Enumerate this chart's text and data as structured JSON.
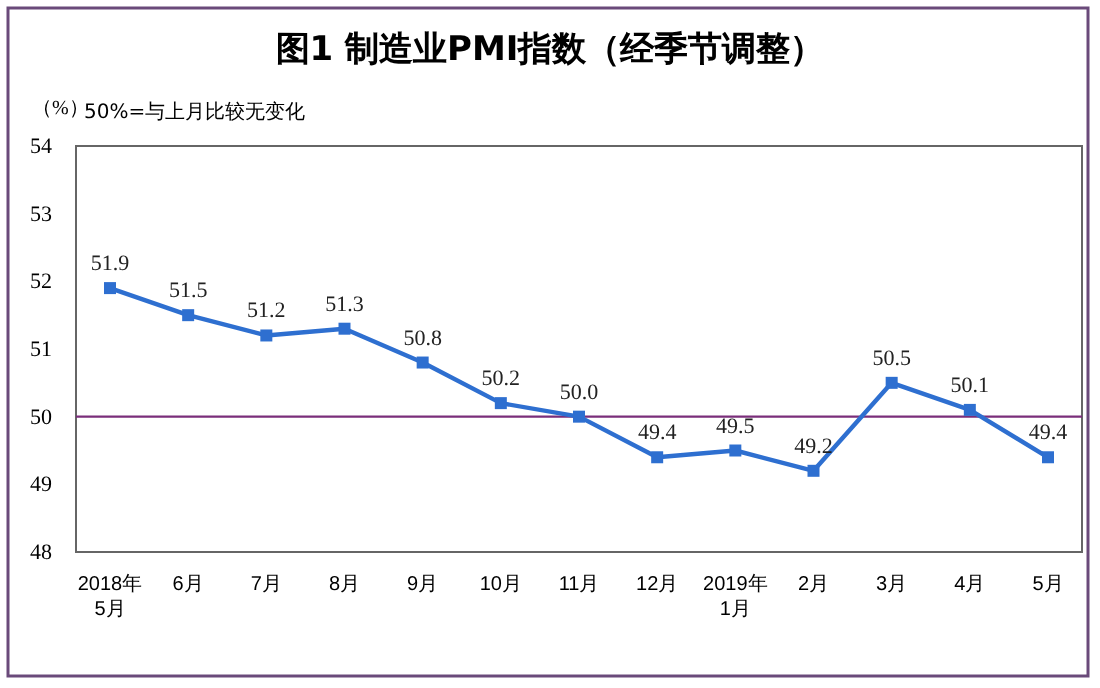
{
  "chart_data": {
    "type": "line",
    "title": "图1 制造业PMI指数（经季节调整）",
    "ylabel": "（%）",
    "annotations": [
      "50%=与上月比较无变化"
    ],
    "categories": [
      "2018年\n5月",
      "6月",
      "7月",
      "8月",
      "9月",
      "10月",
      "11月",
      "12月",
      "2019年\n1月",
      "2月",
      "3月",
      "4月",
      "5月"
    ],
    "series": [
      {
        "color": "#2e6fd0",
        "values": [
          51.9,
          51.5,
          51.2,
          51.3,
          50.8,
          50.2,
          50.0,
          49.4,
          49.5,
          49.2,
          50.5,
          50.1,
          49.4
        ],
        "value_labels": [
          "51.9",
          "51.5",
          "51.2",
          "51.3",
          "50.8",
          "50.2",
          "50.0",
          "49.4",
          "49.5",
          "49.2",
          "50.5",
          "50.1",
          "49.4"
        ]
      }
    ],
    "ylim": [
      48,
      54
    ],
    "yticks": [
      48,
      49,
      50,
      51,
      52,
      53,
      54
    ],
    "grid": false,
    "marker": "square",
    "line_style": "solid",
    "ref_lines": [
      {
        "axis": "y",
        "value": 50,
        "color": "#7a2e7a"
      }
    ]
  }
}
